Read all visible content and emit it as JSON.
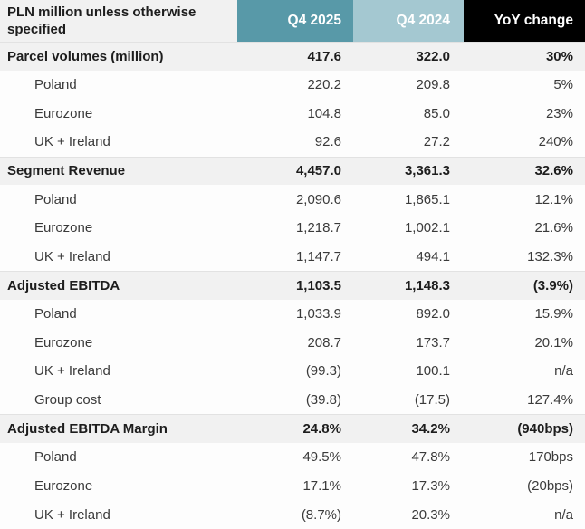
{
  "colors": {
    "q4_2025_header_bg": "#5899a8",
    "q4_2024_header_bg": "#a4c8d1",
    "yoy_header_bg": "#000000",
    "header_text": "#ffffff",
    "section_row_bg": "#f1f1f1",
    "subrow_bg": "#fdfdfd",
    "section_text": "#1d1d1d",
    "body_text": "#3a3a3a",
    "divider": "#e2e2e2"
  },
  "chart_data": {
    "type": "table",
    "corner_header": "PLN million unless otherwise specified",
    "column_headers": [
      "Q4 2025",
      "Q4 2024",
      "YoY change"
    ],
    "rows": [
      {
        "label": "Parcel volumes (million)",
        "style": "section",
        "values": [
          "417.6",
          "322.0",
          "30%"
        ]
      },
      {
        "label": "Poland",
        "style": "sub",
        "values": [
          "220.2",
          "209.8",
          "5%"
        ]
      },
      {
        "label": "Eurozone",
        "style": "sub",
        "values": [
          "104.8",
          "85.0",
          "23%"
        ]
      },
      {
        "label": "UK + Ireland",
        "style": "sub",
        "values": [
          "92.6",
          "27.2",
          "240%"
        ]
      },
      {
        "label": "Segment Revenue",
        "style": "section",
        "values": [
          "4,457.0",
          "3,361.3",
          "32.6%"
        ]
      },
      {
        "label": "Poland",
        "style": "sub",
        "values": [
          "2,090.6",
          "1,865.1",
          "12.1%"
        ]
      },
      {
        "label": "Eurozone",
        "style": "sub",
        "values": [
          "1,218.7",
          "1,002.1",
          "21.6%"
        ]
      },
      {
        "label": "UK + Ireland",
        "style": "sub",
        "values": [
          "1,147.7",
          "494.1",
          "132.3%"
        ]
      },
      {
        "label": "Adjusted EBITDA",
        "style": "section",
        "values": [
          "1,103.5",
          "1,148.3",
          "(3.9%)"
        ]
      },
      {
        "label": "Poland",
        "style": "sub",
        "values": [
          "1,033.9",
          "892.0",
          "15.9%"
        ]
      },
      {
        "label": "Eurozone",
        "style": "sub",
        "values": [
          "208.7",
          "173.7",
          "20.1%"
        ]
      },
      {
        "label": "UK + Ireland",
        "style": "sub",
        "values": [
          "(99.3)",
          "100.1",
          "n/a"
        ]
      },
      {
        "label": "Group cost",
        "style": "sub",
        "values": [
          "(39.8)",
          "(17.5)",
          "127.4%"
        ]
      },
      {
        "label": "Adjusted EBITDA Margin",
        "style": "section",
        "values": [
          "24.8%",
          "34.2%",
          "(940bps)"
        ]
      },
      {
        "label": "Poland",
        "style": "sub",
        "values": [
          "49.5%",
          "47.8%",
          "170bps"
        ]
      },
      {
        "label": "Eurozone",
        "style": "sub",
        "values": [
          "17.1%",
          "17.3%",
          "(20bps)"
        ]
      },
      {
        "label": "UK + Ireland",
        "style": "sub",
        "values": [
          "(8.7%)",
          "20.3%",
          "n/a"
        ]
      }
    ]
  }
}
